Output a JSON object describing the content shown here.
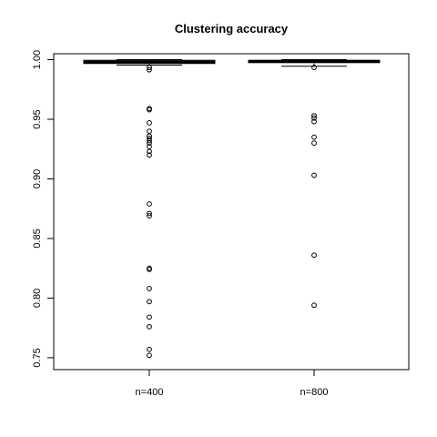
{
  "chart_data": {
    "type": "boxplot",
    "title": "Clustering accuracy",
    "xlabel": "",
    "ylabel": "",
    "categories": [
      "n=400",
      "n=800"
    ],
    "ylim": [
      0.74,
      1.005
    ],
    "yticks": [
      0.75,
      0.8,
      0.85,
      0.9,
      0.95,
      1.0
    ],
    "ytick_labels": [
      "0.75",
      "0.80",
      "0.85",
      "0.90",
      "0.95",
      "1.00"
    ],
    "series": [
      {
        "category": "n=400",
        "whisker_low": 0.9955,
        "q1": 0.9968,
        "median": 0.998,
        "q3": 0.9995,
        "whisker_high": 1.0,
        "outliers": [
          0.9935,
          0.9915,
          0.959,
          0.958,
          0.947,
          0.94,
          0.936,
          0.934,
          0.932,
          0.93,
          0.927,
          0.923,
          0.92,
          0.879,
          0.871,
          0.869,
          0.825,
          0.824,
          0.808,
          0.797,
          0.784,
          0.776,
          0.757,
          0.752
        ]
      },
      {
        "category": "n=800",
        "whisker_low": 0.9945,
        "q1": 0.9975,
        "median": 0.9985,
        "q3": 0.9995,
        "whisker_high": 1.0,
        "outliers": [
          0.9935,
          0.953,
          0.951,
          0.948,
          0.935,
          0.93,
          0.903,
          0.836,
          0.794
        ]
      }
    ],
    "grid": false,
    "legend": "none"
  }
}
